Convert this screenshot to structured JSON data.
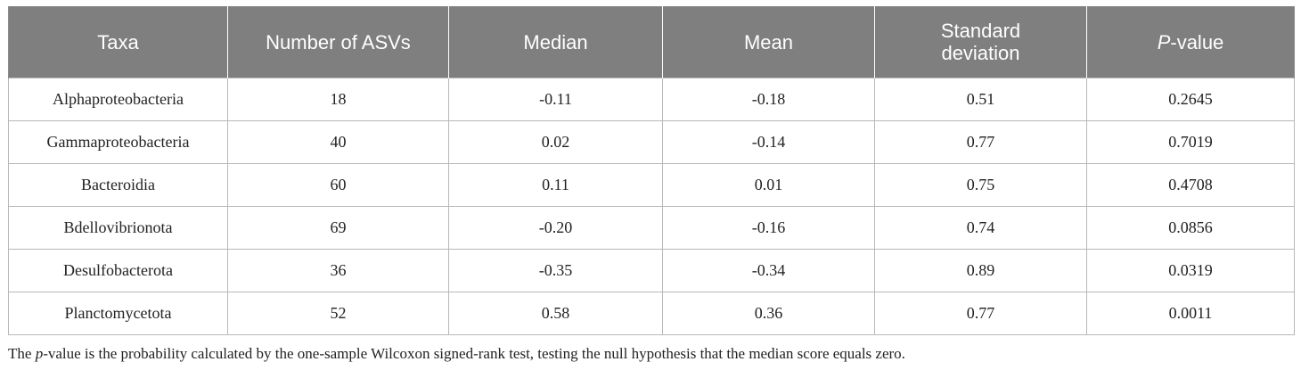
{
  "table": {
    "headers": [
      {
        "text": "Taxa"
      },
      {
        "text": "Number of ASVs"
      },
      {
        "text": "Median"
      },
      {
        "text": "Mean"
      },
      {
        "text": "Standard deviation"
      },
      {
        "italic": "P",
        "text": "-value"
      }
    ],
    "rows": [
      {
        "taxa": "Alphaproteobacteria",
        "asvs": "18",
        "median": "-0.11",
        "mean": "-0.18",
        "sd": "0.51",
        "p": "0.2645"
      },
      {
        "taxa": "Gammaproteobacteria",
        "asvs": "40",
        "median": "0.02",
        "mean": "-0.14",
        "sd": "0.77",
        "p": "0.7019"
      },
      {
        "taxa": "Bacteroidia",
        "asvs": "60",
        "median": "0.11",
        "mean": "0.01",
        "sd": "0.75",
        "p": "0.4708"
      },
      {
        "taxa": "Bdellovibrionota",
        "asvs": "69",
        "median": "-0.20",
        "mean": "-0.16",
        "sd": "0.74",
        "p": "0.0856"
      },
      {
        "taxa": "Desulfobacterota",
        "asvs": "36",
        "median": "-0.35",
        "mean": "-0.34",
        "sd": "0.89",
        "p": "0.0319"
      },
      {
        "taxa": "Planctomycetota",
        "asvs": "52",
        "median": "0.58",
        "mean": "0.36",
        "sd": "0.77",
        "p": "0.0011"
      }
    ]
  },
  "footnote": {
    "prefix": "The ",
    "italic": "p",
    "suffix": "-value is the probability calculated by the one-sample Wilcoxon signed-rank test, testing the null hypothesis that the median score equals zero."
  }
}
